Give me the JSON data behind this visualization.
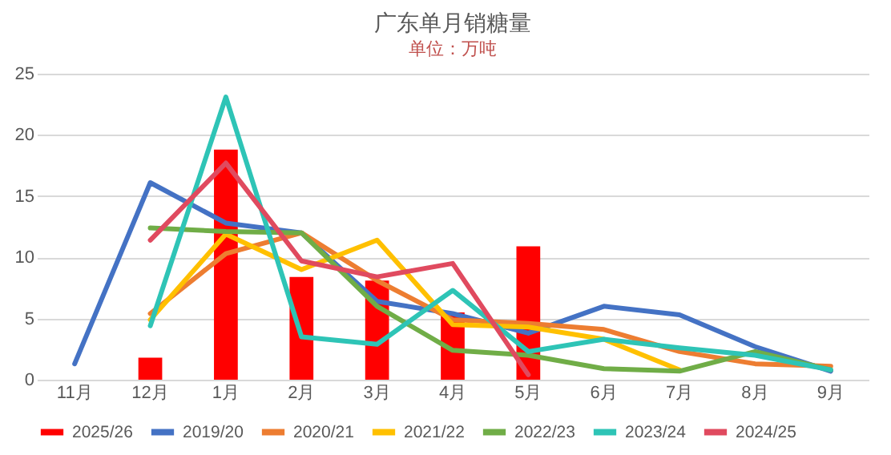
{
  "chart_data": {
    "type": "line",
    "title": "广东单月销糖量",
    "subtitle": "单位：万吨",
    "categories": [
      "11月",
      "12月",
      "1月",
      "2月",
      "3月",
      "4月",
      "5月",
      "6月",
      "7月",
      "8月",
      "9月"
    ],
    "ylim": [
      0,
      25
    ],
    "yticks": [
      0,
      5,
      10,
      15,
      20,
      25
    ],
    "grid": "y",
    "legend": "bottom",
    "series": [
      {
        "name": "2025/26",
        "type": "bar",
        "color": "#ff0000",
        "values": [
          null,
          1.8,
          18.8,
          8.4,
          8.1,
          5.5,
          10.9,
          null,
          null,
          null,
          null
        ]
      },
      {
        "name": "2019/20",
        "color": "#4472c4",
        "values": [
          1.3,
          16.1,
          12.8,
          12.0,
          6.4,
          5.4,
          3.8,
          6.0,
          5.3,
          2.7,
          0.7
        ]
      },
      {
        "name": "2020/21",
        "color": "#ed7d31",
        "values": [
          null,
          5.4,
          10.3,
          12.0,
          8.1,
          4.9,
          4.6,
          4.1,
          2.3,
          1.3,
          1.1
        ]
      },
      {
        "name": "2021/22",
        "color": "#ffc000",
        "values": [
          null,
          4.9,
          11.9,
          9.0,
          11.4,
          4.5,
          4.3,
          3.3,
          0.8,
          null,
          null
        ]
      },
      {
        "name": "2022/23",
        "color": "#70ad47",
        "values": [
          null,
          12.4,
          12.1,
          12.0,
          6.0,
          2.4,
          2.0,
          0.9,
          0.7,
          2.3,
          0.8
        ]
      },
      {
        "name": "2023/24",
        "color": "#2ec4b6",
        "values": [
          null,
          4.4,
          23.1,
          3.5,
          2.9,
          7.3,
          2.3,
          3.3,
          2.6,
          2.0,
          0.8
        ]
      },
      {
        "name": "2024/25",
        "color": "#e04a5f",
        "values": [
          null,
          11.4,
          17.7,
          9.7,
          8.4,
          9.5,
          0.4,
          null,
          null,
          null,
          null
        ]
      }
    ]
  }
}
